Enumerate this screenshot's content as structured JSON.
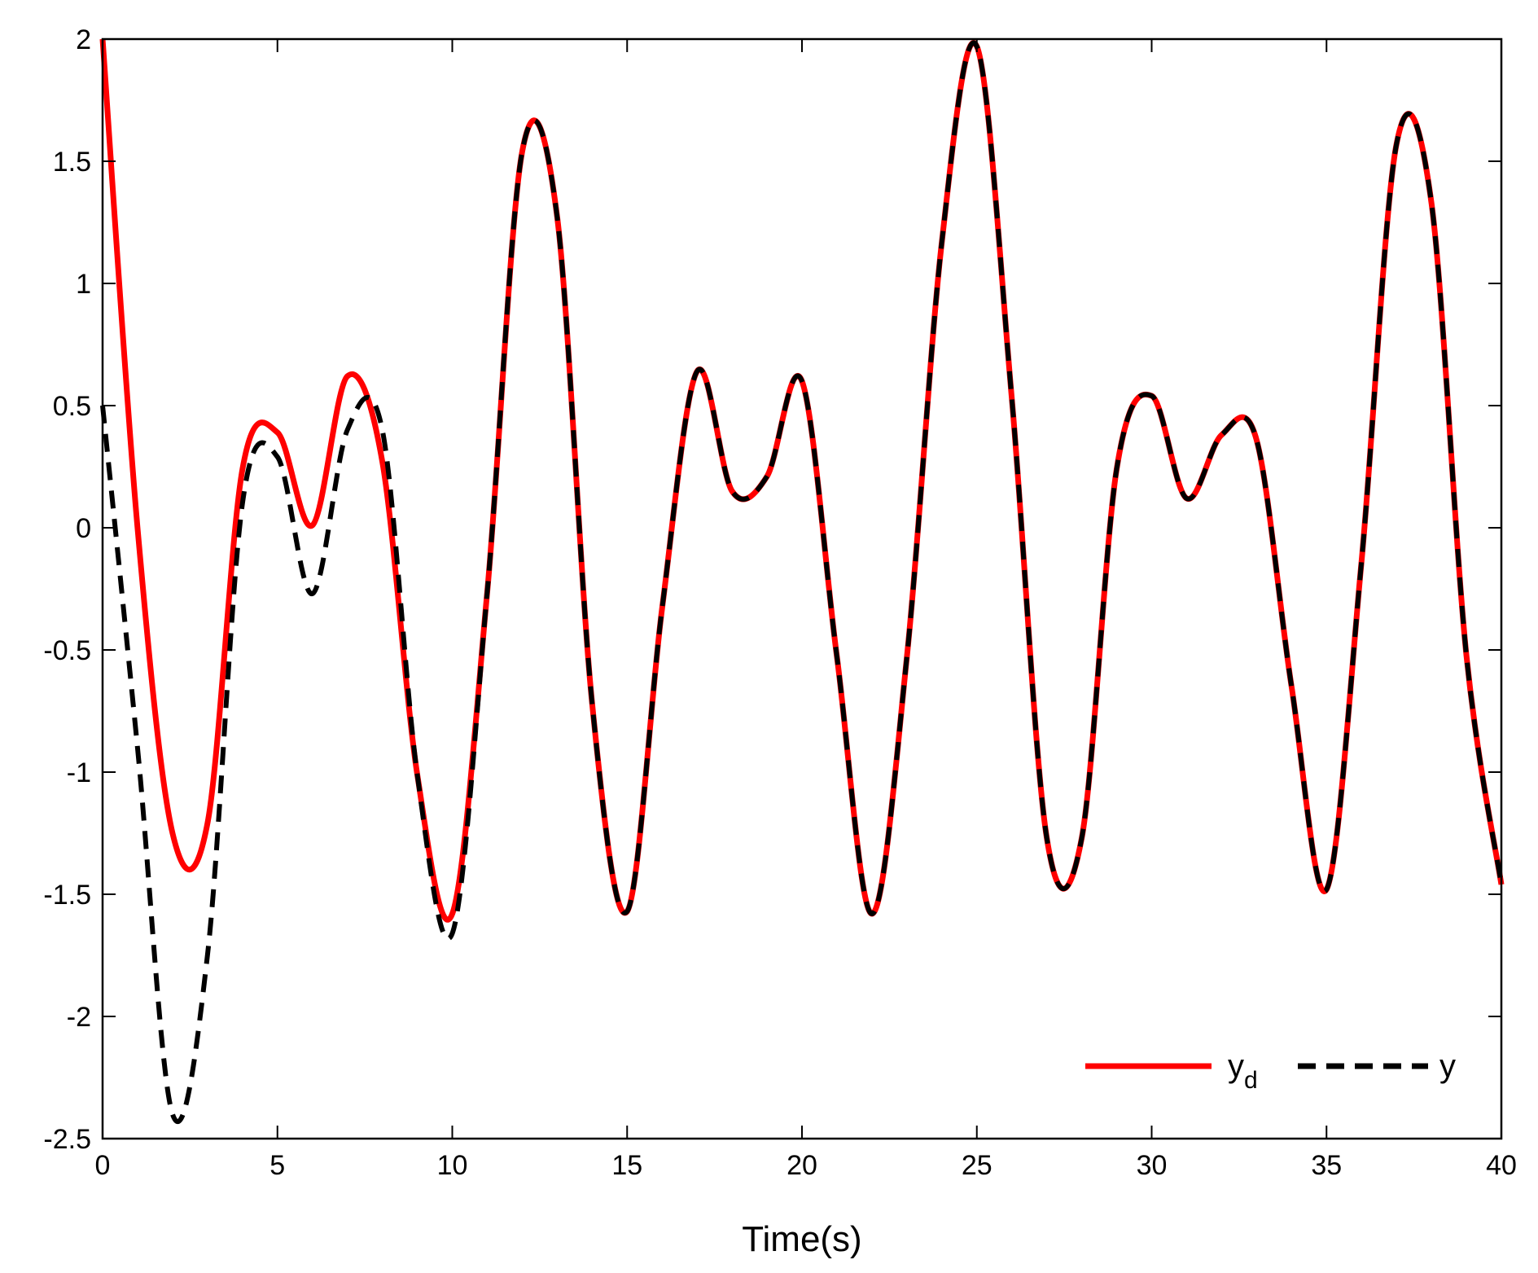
{
  "chart_data": {
    "type": "line",
    "xlabel": "Time(s)",
    "ylabel": "",
    "xlim": [
      0,
      40
    ],
    "ylim": [
      -2.5,
      2
    ],
    "xticks": [
      "0",
      "5",
      "10",
      "15",
      "20",
      "25",
      "30",
      "35",
      "40"
    ],
    "yticks": [
      "2",
      "1.5",
      "1",
      "0.5",
      "0",
      "-0.5",
      "-1",
      "-1.5",
      "-2",
      "-2.5"
    ],
    "grid": false,
    "legend_position": "bottom-right",
    "legend": {
      "yd_main": "y",
      "yd_sub": "d",
      "y_label": "y"
    },
    "x": [
      0,
      1,
      2,
      3,
      4,
      5,
      6,
      7,
      8,
      9,
      10,
      11,
      12,
      13,
      14,
      15,
      16,
      17,
      18,
      19,
      20,
      21,
      22,
      23,
      24,
      25,
      26,
      27,
      28,
      29,
      30,
      31,
      32,
      33,
      34,
      35,
      36,
      37,
      38,
      39,
      40
    ],
    "series": [
      {
        "key": "yd",
        "color": "#ff0000",
        "style": "solid",
        "values": [
          2.0,
          0.0,
          -1.25,
          -1.21,
          0.24,
          0.39,
          0.01,
          0.62,
          0.27,
          -1.01,
          -1.58,
          -0.26,
          1.54,
          1.27,
          -0.72,
          -1.57,
          -0.33,
          0.64,
          0.15,
          0.21,
          0.6,
          -0.53,
          -1.58,
          -0.53,
          1.17,
          1.97,
          0.53,
          -1.27,
          -1.27,
          0.24,
          0.54,
          0.12,
          0.38,
          0.36,
          -0.65,
          -1.48,
          -0.14,
          1.57,
          1.33,
          -0.52,
          -1.46
        ]
      },
      {
        "key": "y",
        "color": "#000000",
        "style": "dashed",
        "values": [
          0.5,
          -0.9,
          -2.4,
          -1.75,
          0.1,
          0.29,
          -0.27,
          0.4,
          0.4,
          -1.01,
          -1.66,
          -0.26,
          1.54,
          1.27,
          -0.72,
          -1.57,
          -0.33,
          0.64,
          0.15,
          0.21,
          0.6,
          -0.53,
          -1.58,
          -0.53,
          1.17,
          1.97,
          0.53,
          -1.27,
          -1.27,
          0.24,
          0.54,
          0.12,
          0.38,
          0.36,
          -0.65,
          -1.48,
          -0.14,
          1.57,
          1.33,
          -0.52,
          -1.46
        ]
      }
    ]
  }
}
